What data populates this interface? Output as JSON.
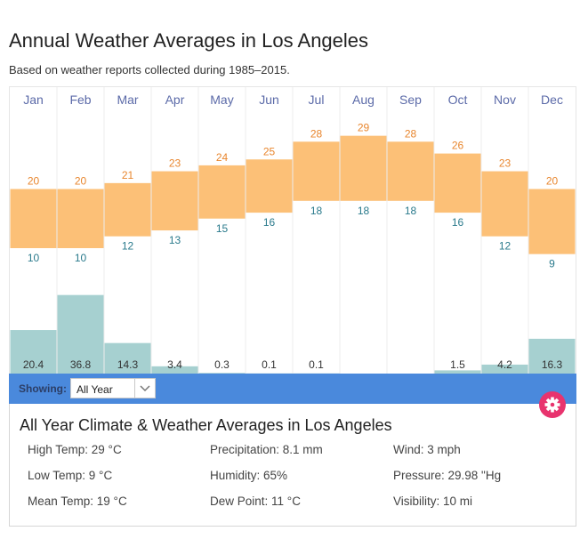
{
  "header": {
    "title": "Annual Weather Averages in Los Angeles",
    "subtitle": "Based on weather reports collected during 1985–2015."
  },
  "chart_data": {
    "type": "bar",
    "title": "Annual Weather Averages in Los Angeles",
    "categories": [
      "Jan",
      "Feb",
      "Mar",
      "Apr",
      "May",
      "Jun",
      "Jul",
      "Aug",
      "Sep",
      "Oct",
      "Nov",
      "Dec"
    ],
    "series": [
      {
        "name": "High Temp (°C)",
        "values": [
          20,
          20,
          21,
          23,
          24,
          25,
          28,
          29,
          28,
          26,
          23,
          20
        ]
      },
      {
        "name": "Low Temp (°C)",
        "values": [
          10,
          10,
          12,
          13,
          15,
          16,
          18,
          18,
          18,
          16,
          12,
          9
        ]
      },
      {
        "name": "Precipitation (mm)",
        "values": [
          20.4,
          36.8,
          14.3,
          3.4,
          0.3,
          0.1,
          0.1,
          0,
          0,
          1.5,
          4.2,
          16.3
        ],
        "labels": [
          "20.4",
          "36.8",
          "14.3",
          "3.4",
          "0.3",
          "0.1",
          "0.1",
          "",
          "",
          "1.5",
          "4.2",
          "16.3"
        ]
      }
    ],
    "xlabel": "",
    "ylabel": "",
    "colors": {
      "temp_range": "#fcc077",
      "high_label": "#e8862e",
      "low_label": "#2a7a8c",
      "precip": "#a6d0d0",
      "month_label": "#5b6aa8",
      "precip_label": "#333333"
    }
  },
  "controls": {
    "showing_label": "Showing:",
    "selected_period": "All Year",
    "bar_color": "#4a89dc",
    "settings_color": "#e8336e"
  },
  "summary": {
    "title": "All Year Climate & Weather Averages in Los Angeles",
    "stats": [
      [
        "High Temp: 29 °C",
        "Precipitation: 8.1 mm",
        "Wind: 3 mph"
      ],
      [
        "Low Temp: 9 °C",
        "Humidity: 65%",
        "Pressure: 29.98 \"Hg"
      ],
      [
        "Mean Temp: 19 °C",
        "Dew Point: 11 °C",
        "Visibility: 10 mi"
      ]
    ]
  }
}
